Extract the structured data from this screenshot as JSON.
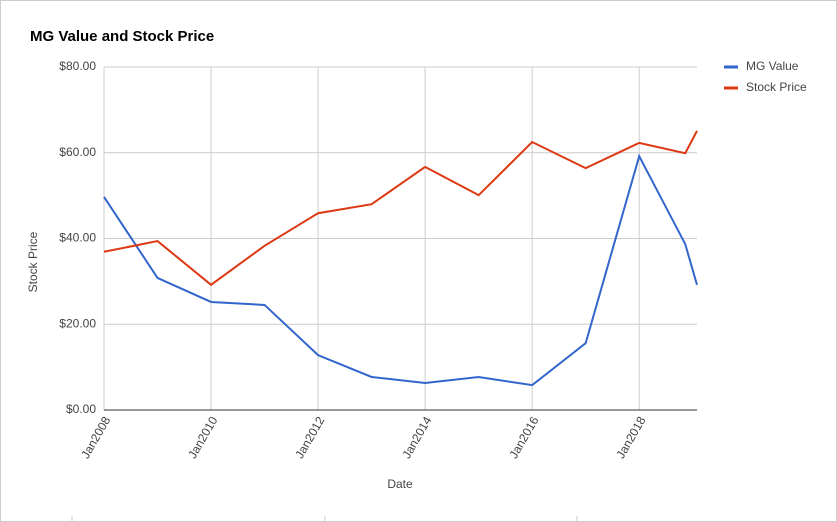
{
  "chart_data": {
    "type": "line",
    "title": "MG Value and Stock Price",
    "x_label": "Date",
    "y_label": "Stock Price",
    "x": [
      2008,
      2009,
      2010,
      2011,
      2012,
      2013,
      2014,
      2015,
      2016,
      2017,
      2018,
      2018.86,
      2019.08
    ],
    "xlim": [
      2008,
      2019.08
    ],
    "xticks": [
      {
        "value": 2008,
        "label": "Jan2008"
      },
      {
        "value": 2010,
        "label": "Jan2010"
      },
      {
        "value": 2012,
        "label": "Jan2012"
      },
      {
        "value": 2014,
        "label": "Jan2014"
      },
      {
        "value": 2016,
        "label": "Jan2016"
      },
      {
        "value": 2018,
        "label": "Jan2018"
      }
    ],
    "ylim": [
      0,
      80
    ],
    "yticks": [
      {
        "value": 0,
        "label": "$0.00"
      },
      {
        "value": 20,
        "label": "$20.00"
      },
      {
        "value": 40,
        "label": "$40.00"
      },
      {
        "value": 60,
        "label": "$60.00"
      },
      {
        "value": 80,
        "label": "$80.00"
      }
    ],
    "grid": true,
    "legend": "right",
    "series": [
      {
        "name": "MG Value",
        "color": "#3366cc",
        "values": [
          49.7,
          30.8,
          25.2,
          24.5,
          12.8,
          7.7,
          6.3,
          7.7,
          5.8,
          15.6,
          59.2,
          38.7,
          29.2
        ]
      },
      {
        "name": "Stock Price",
        "color": "#dc3912",
        "values": [
          36.9,
          39.4,
          29.2,
          38.3,
          45.9,
          48.0,
          56.7,
          50.1,
          62.5,
          56.4,
          62.3,
          59.9,
          65.1
        ]
      }
    ]
  }
}
